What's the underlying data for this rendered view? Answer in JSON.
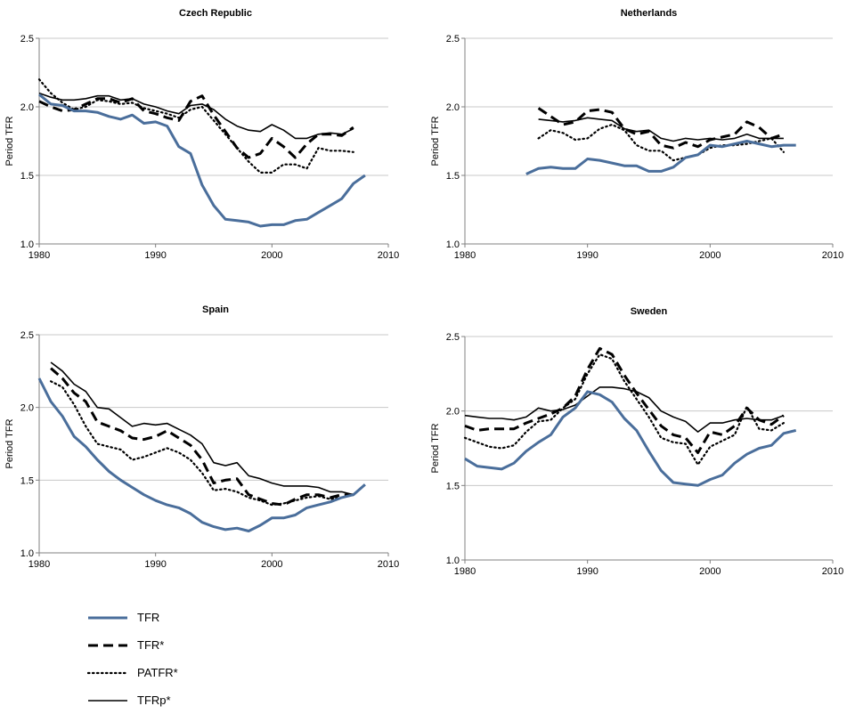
{
  "legend": [
    {
      "label": "TFR",
      "color": "#4A6E9B"
    },
    {
      "label": "TFR*",
      "color": "#000000"
    },
    {
      "label": "PATFR*",
      "color": "#000000"
    },
    {
      "label": "TFRp*",
      "color": "#000000"
    }
  ],
  "chart_data": [
    {
      "type": "line",
      "title": "Czech Republic",
      "xlabel": "",
      "ylabel": "Period TFR",
      "xlim": [
        1980,
        2010
      ],
      "ylim": [
        1.0,
        2.5
      ],
      "xticks": [
        1980,
        1990,
        2000,
        2010
      ],
      "yticks": [
        1.0,
        1.5,
        2.0,
        2.5
      ],
      "yticklabels": [
        "1.0",
        "1.5",
        "2.0",
        "2.5"
      ],
      "grid": "horizontal",
      "series": [
        {
          "name": "TFR",
          "x": [
            1980,
            1981,
            1982,
            1983,
            1984,
            1985,
            1986,
            1987,
            1988,
            1989,
            1990,
            1991,
            1992,
            1993,
            1994,
            1995,
            1996,
            1997,
            1998,
            1999,
            2000,
            2001,
            2002,
            2003,
            2004,
            2005,
            2006,
            2007,
            2008
          ],
          "values": [
            2.09,
            2.02,
            2.01,
            1.97,
            1.97,
            1.96,
            1.93,
            1.91,
            1.94,
            1.88,
            1.89,
            1.86,
            1.71,
            1.66,
            1.43,
            1.28,
            1.18,
            1.17,
            1.16,
            1.13,
            1.14,
            1.14,
            1.17,
            1.18,
            1.23,
            1.28,
            1.33,
            1.44,
            1.5
          ]
        },
        {
          "name": "TFR*",
          "x": [
            1980,
            1981,
            1982,
            1983,
            1984,
            1985,
            1986,
            1987,
            1988,
            1989,
            1990,
            1991,
            1992,
            1993,
            1994,
            1995,
            1996,
            1997,
            1998,
            1999,
            2000,
            2001,
            2002,
            2003,
            2004,
            2005,
            2006,
            2007
          ],
          "values": [
            2.04,
            2.0,
            1.97,
            1.98,
            2.02,
            2.06,
            2.06,
            2.03,
            2.06,
            1.97,
            1.95,
            1.92,
            1.9,
            2.04,
            2.08,
            1.94,
            1.82,
            1.7,
            1.63,
            1.66,
            1.77,
            1.71,
            1.63,
            1.73,
            1.8,
            1.8,
            1.79,
            1.85
          ]
        },
        {
          "name": "PATFR*",
          "x": [
            1980,
            1981,
            1982,
            1983,
            1984,
            1985,
            1986,
            1987,
            1988,
            1989,
            1990,
            1991,
            1992,
            1993,
            1994,
            1995,
            1996,
            1997,
            1998,
            1999,
            2000,
            2001,
            2002,
            2003,
            2004,
            2005,
            2006,
            2007
          ],
          "values": [
            2.2,
            2.1,
            2.03,
            1.98,
            2.0,
            2.05,
            2.04,
            2.02,
            2.03,
            1.99,
            1.97,
            1.95,
            1.92,
            1.98,
            2.0,
            1.9,
            1.8,
            1.7,
            1.6,
            1.52,
            1.52,
            1.58,
            1.58,
            1.55,
            1.7,
            1.68,
            1.68,
            1.67
          ]
        },
        {
          "name": "TFRp*",
          "x": [
            1980,
            1981,
            1982,
            1983,
            1984,
            1985,
            1986,
            1987,
            1988,
            1989,
            1990,
            1991,
            1992,
            1993,
            1994,
            1995,
            1996,
            1997,
            1998,
            1999,
            2000,
            2001,
            2002,
            2003,
            2004,
            2005,
            2006,
            2007
          ],
          "values": [
            2.1,
            2.07,
            2.05,
            2.05,
            2.06,
            2.08,
            2.08,
            2.05,
            2.06,
            2.02,
            2.0,
            1.97,
            1.95,
            2.01,
            2.02,
            1.98,
            1.91,
            1.86,
            1.83,
            1.82,
            1.87,
            1.83,
            1.77,
            1.77,
            1.8,
            1.81,
            1.8,
            1.84
          ]
        }
      ]
    },
    {
      "type": "line",
      "title": "Netherlands",
      "xlabel": "",
      "ylabel": "Period TFR",
      "xlim": [
        1980,
        2010
      ],
      "ylim": [
        1.0,
        2.5
      ],
      "xticks": [
        1980,
        1990,
        2000,
        2010
      ],
      "yticks": [
        1.0,
        1.5,
        2.0,
        2.5
      ],
      "yticklabels": [
        "1.0",
        "1.5",
        "2.0",
        "2.5"
      ],
      "grid": "horizontal",
      "series": [
        {
          "name": "TFR",
          "x": [
            1985,
            1986,
            1987,
            1988,
            1989,
            1990,
            1991,
            1992,
            1993,
            1994,
            1995,
            1996,
            1997,
            1998,
            1999,
            2000,
            2001,
            2002,
            2003,
            2004,
            2005,
            2006,
            2007
          ],
          "values": [
            1.51,
            1.55,
            1.56,
            1.55,
            1.55,
            1.62,
            1.61,
            1.59,
            1.57,
            1.57,
            1.53,
            1.53,
            1.56,
            1.63,
            1.65,
            1.72,
            1.71,
            1.73,
            1.75,
            1.73,
            1.71,
            1.72,
            1.72
          ]
        },
        {
          "name": "TFR*",
          "x": [
            1986,
            1987,
            1988,
            1989,
            1990,
            1991,
            1992,
            1993,
            1994,
            1995,
            1996,
            1997,
            1998,
            1999,
            2000,
            2001,
            2002,
            2003,
            2004,
            2005,
            2006
          ],
          "values": [
            1.99,
            1.93,
            1.87,
            1.89,
            1.97,
            1.98,
            1.96,
            1.84,
            1.8,
            1.82,
            1.72,
            1.7,
            1.74,
            1.71,
            1.76,
            1.78,
            1.8,
            1.89,
            1.85,
            1.77,
            1.8
          ]
        },
        {
          "name": "PATFR*",
          "x": [
            1986,
            1987,
            1988,
            1989,
            1990,
            1991,
            1992,
            1993,
            1994,
            1995,
            1996,
            1997,
            1998,
            1999,
            2000,
            2001,
            2002,
            2003,
            2004,
            2005,
            2006
          ],
          "values": [
            1.77,
            1.83,
            1.81,
            1.76,
            1.77,
            1.84,
            1.87,
            1.83,
            1.72,
            1.68,
            1.68,
            1.61,
            1.63,
            1.65,
            1.7,
            1.72,
            1.72,
            1.73,
            1.75,
            1.77,
            1.67
          ]
        },
        {
          "name": "TFRp*",
          "x": [
            1986,
            1987,
            1988,
            1989,
            1990,
            1991,
            1992,
            1993,
            1994,
            1995,
            1996,
            1997,
            1998,
            1999,
            2000,
            2001,
            2002,
            2003,
            2004,
            2005,
            2006
          ],
          "values": [
            1.91,
            1.9,
            1.89,
            1.9,
            1.92,
            1.91,
            1.9,
            1.84,
            1.82,
            1.83,
            1.77,
            1.75,
            1.77,
            1.76,
            1.77,
            1.76,
            1.77,
            1.8,
            1.77,
            1.77,
            1.77
          ]
        }
      ]
    },
    {
      "type": "line",
      "title": "Spain",
      "xlabel": "",
      "ylabel": "Period TFR",
      "xlim": [
        1980,
        2010
      ],
      "ylim": [
        1.0,
        2.5
      ],
      "xticks": [
        1980,
        1990,
        2000,
        2010
      ],
      "yticks": [
        1.0,
        1.5,
        2.0,
        2.5
      ],
      "yticklabels": [
        "1.0",
        "1.5",
        "2.0",
        "2.5"
      ],
      "grid": "horizontal",
      "series": [
        {
          "name": "TFR",
          "x": [
            1980,
            1981,
            1982,
            1983,
            1984,
            1985,
            1986,
            1987,
            1988,
            1989,
            1990,
            1991,
            1992,
            1993,
            1994,
            1995,
            1996,
            1997,
            1998,
            1999,
            2000,
            2001,
            2002,
            2003,
            2004,
            2005,
            2006,
            2007,
            2008
          ],
          "values": [
            2.2,
            2.04,
            1.94,
            1.8,
            1.73,
            1.64,
            1.56,
            1.5,
            1.45,
            1.4,
            1.36,
            1.33,
            1.31,
            1.27,
            1.21,
            1.18,
            1.16,
            1.17,
            1.15,
            1.19,
            1.24,
            1.24,
            1.26,
            1.31,
            1.33,
            1.35,
            1.38,
            1.4,
            1.47
          ]
        },
        {
          "name": "TFR*",
          "x": [
            1981,
            1982,
            1983,
            1984,
            1985,
            1986,
            1987,
            1988,
            1989,
            1990,
            1991,
            1992,
            1993,
            1994,
            1995,
            1996,
            1997,
            1998,
            1999,
            2000,
            2001,
            2002,
            2003,
            2004,
            2005,
            2006,
            2007
          ],
          "values": [
            2.27,
            2.2,
            2.1,
            2.04,
            1.9,
            1.87,
            1.84,
            1.79,
            1.78,
            1.8,
            1.84,
            1.79,
            1.74,
            1.64,
            1.48,
            1.5,
            1.51,
            1.4,
            1.37,
            1.34,
            1.33,
            1.37,
            1.4,
            1.4,
            1.38,
            1.4,
            1.4
          ]
        },
        {
          "name": "PATFR*",
          "x": [
            1981,
            1982,
            1983,
            1984,
            1985,
            1986,
            1987,
            1988,
            1989,
            1990,
            1991,
            1992,
            1993,
            1994,
            1995,
            1996,
            1997,
            1998,
            1999,
            2000,
            2001,
            2002,
            2003,
            2004,
            2005,
            2006,
            2007
          ],
          "values": [
            2.18,
            2.14,
            2.02,
            1.87,
            1.75,
            1.73,
            1.71,
            1.64,
            1.66,
            1.69,
            1.72,
            1.69,
            1.64,
            1.55,
            1.43,
            1.44,
            1.42,
            1.38,
            1.36,
            1.33,
            1.34,
            1.36,
            1.38,
            1.39,
            1.37,
            1.38,
            1.4
          ]
        },
        {
          "name": "TFRp*",
          "x": [
            1981,
            1982,
            1983,
            1984,
            1985,
            1986,
            1987,
            1988,
            1989,
            1990,
            1991,
            1992,
            1993,
            1994,
            1995,
            1996,
            1997,
            1998,
            1999,
            2000,
            2001,
            2002,
            2003,
            2004,
            2005,
            2006,
            2007
          ],
          "values": [
            2.31,
            2.25,
            2.16,
            2.11,
            2.0,
            1.99,
            1.93,
            1.87,
            1.89,
            1.88,
            1.89,
            1.85,
            1.81,
            1.75,
            1.62,
            1.6,
            1.62,
            1.53,
            1.51,
            1.48,
            1.46,
            1.46,
            1.46,
            1.45,
            1.42,
            1.42,
            1.4
          ]
        }
      ]
    },
    {
      "type": "line",
      "title": "Sweden",
      "xlabel": "",
      "ylabel": "Period TFR",
      "xlim": [
        1980,
        2010
      ],
      "ylim": [
        1.0,
        2.5
      ],
      "xticks": [
        1980,
        1990,
        2000,
        2010
      ],
      "yticks": [
        1.0,
        1.5,
        2.0,
        2.5
      ],
      "yticklabels": [
        "1.0",
        "1.5",
        "2.0",
        "2.5"
      ],
      "grid": "horizontal",
      "series": [
        {
          "name": "TFR",
          "x": [
            1980,
            1981,
            1982,
            1983,
            1984,
            1985,
            1986,
            1987,
            1988,
            1989,
            1990,
            1991,
            1992,
            1993,
            1994,
            1995,
            1996,
            1997,
            1998,
            1999,
            2000,
            2001,
            2002,
            2003,
            2004,
            2005,
            2006,
            2007
          ],
          "values": [
            1.68,
            1.63,
            1.62,
            1.61,
            1.65,
            1.73,
            1.79,
            1.84,
            1.96,
            2.02,
            2.13,
            2.11,
            2.06,
            1.95,
            1.87,
            1.73,
            1.6,
            1.52,
            1.51,
            1.5,
            1.54,
            1.57,
            1.65,
            1.71,
            1.75,
            1.77,
            1.85,
            1.87
          ]
        },
        {
          "name": "TFR*",
          "x": [
            1980,
            1981,
            1982,
            1983,
            1984,
            1985,
            1986,
            1987,
            1988,
            1989,
            1990,
            1991,
            1992,
            1993,
            1994,
            1995,
            1996,
            1997,
            1998,
            1999,
            2000,
            2001,
            2002,
            2003,
            2004,
            2005,
            2006
          ],
          "values": [
            1.9,
            1.87,
            1.88,
            1.88,
            1.88,
            1.92,
            1.95,
            1.98,
            2.02,
            2.1,
            2.28,
            2.42,
            2.38,
            2.24,
            2.12,
            2.01,
            1.9,
            1.84,
            1.82,
            1.72,
            1.86,
            1.84,
            1.9,
            2.02,
            1.94,
            1.91,
            1.97
          ]
        },
        {
          "name": "PATFR*",
          "x": [
            1980,
            1981,
            1982,
            1983,
            1984,
            1985,
            1986,
            1987,
            1988,
            1989,
            1990,
            1991,
            1992,
            1993,
            1994,
            1995,
            1996,
            1997,
            1998,
            1999,
            2000,
            2001,
            2002,
            2003,
            2004,
            2005,
            2006
          ],
          "values": [
            1.82,
            1.79,
            1.76,
            1.75,
            1.77,
            1.86,
            1.93,
            1.94,
            2.02,
            2.08,
            2.25,
            2.38,
            2.35,
            2.2,
            2.08,
            1.96,
            1.82,
            1.79,
            1.78,
            1.64,
            1.76,
            1.8,
            1.84,
            2.03,
            1.88,
            1.87,
            1.92
          ]
        },
        {
          "name": "TFRp*",
          "x": [
            1980,
            1981,
            1982,
            1983,
            1984,
            1985,
            1986,
            1987,
            1988,
            1989,
            1990,
            1991,
            1992,
            1993,
            1994,
            1995,
            1996,
            1997,
            1998,
            1999,
            2000,
            2001,
            2002,
            2003,
            2004,
            2005,
            2006
          ],
          "values": [
            1.97,
            1.96,
            1.95,
            1.95,
            1.94,
            1.96,
            2.02,
            2.0,
            2.01,
            2.04,
            2.1,
            2.16,
            2.16,
            2.15,
            2.13,
            2.09,
            2.0,
            1.96,
            1.93,
            1.86,
            1.92,
            1.92,
            1.94,
            1.95,
            1.94,
            1.94,
            1.97
          ]
        }
      ]
    }
  ]
}
